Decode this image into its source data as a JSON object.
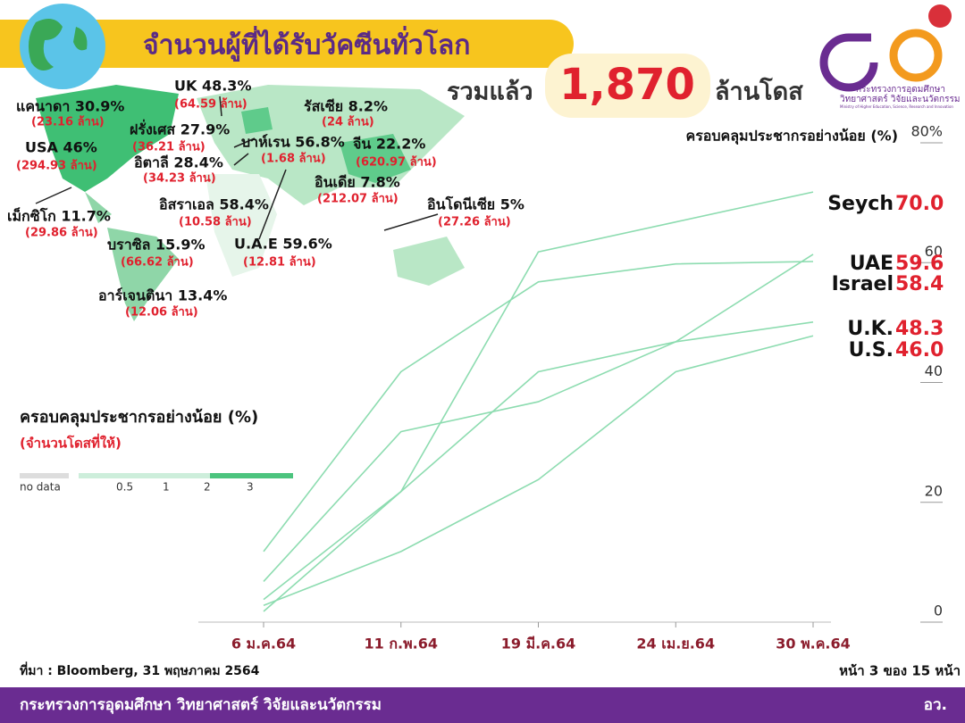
{
  "header": {
    "title": "จำนวนผู้ที่ได้รับวัคซีนทั่วโลก",
    "total_prefix": "รวมแล้ว",
    "total": "1,870",
    "total_suffix": "ล้านโดส",
    "logo_line1": "กระทรวงการอุดมศึกษา",
    "logo_line2": "วิทยาศาสตร์ วิจัยและนวัตกรรม",
    "logo_line3": "Ministry of Higher Education, Science, Research and Innovation"
  },
  "map": {
    "labels": [
      {
        "name": "แคนาดา 30.9%",
        "doses": "(23.16 ล้าน)"
      },
      {
        "name": "UK 48.3%",
        "doses": "(64.59 ล้าน)"
      },
      {
        "name": "ฝรั่งเศส 27.9%",
        "doses": "(36.21 ล้าน)"
      },
      {
        "name": "USA 46%",
        "doses": "(294.93 ล้าน)"
      },
      {
        "name": "อิตาลี 28.4%",
        "doses": "(34.23 ล้าน)"
      },
      {
        "name": "รัสเซีย 8.2%",
        "doses": "(24 ล้าน)"
      },
      {
        "name": "บาห์เรน 56.8%",
        "doses": "(1.68 ล้าน)"
      },
      {
        "name": "จีน 22.2%",
        "doses": "(620.97 ล้าน)"
      },
      {
        "name": "อินเดีย 7.8%",
        "doses": "(212.07 ล้าน)"
      },
      {
        "name": "อิสราเอล 58.4%",
        "doses": "(10.58 ล้าน)"
      },
      {
        "name": "อินโดนีเซีย 5%",
        "doses": "(27.26 ล้าน)"
      },
      {
        "name": "เม็กซิโก 11.7%",
        "doses": "(29.86 ล้าน)"
      },
      {
        "name": "บราซิล 15.9%",
        "doses": "(66.62 ล้าน)"
      },
      {
        "name": "U.A.E 59.6%",
        "doses": "(12.81 ล้าน)"
      },
      {
        "name": "อาร์เจนตินา 13.4%",
        "doses": "(12.06 ล้าน)"
      }
    ],
    "legend": {
      "title": "ครอบคลุมประชากรอย่างน้อย (%)",
      "subtitle": "(จำนวนโดสที่ให้)",
      "labels": [
        "no data",
        "0.5",
        "1",
        "2",
        "3"
      ]
    }
  },
  "chart_data": {
    "type": "line",
    "y_label": "ครอบคลุมประชากรอย่างน้อย (%)",
    "categories": [
      "6 ม.ค.64",
      "11 ก.พ.64",
      "19 มี.ค.64",
      "24 เม.ย.64",
      "30 พ.ค.64"
    ],
    "series": [
      {
        "name": "Seych",
        "color": "#8ddcb0",
        "values": [
          0,
          20,
          60,
          65,
          70.0
        ],
        "value_labels": [
          null,
          null,
          null,
          null,
          "70.0"
        ]
      },
      {
        "name": "UAE",
        "color": "#8ddcb0",
        "values": [
          5,
          30,
          35,
          45,
          59.6
        ],
        "value_labels": [
          null,
          null,
          null,
          null,
          "59.6"
        ]
      },
      {
        "name": "Israel",
        "color": "#8ddcb0",
        "values": [
          10,
          40,
          55,
          58,
          58.4
        ],
        "value_labels": [
          null,
          null,
          null,
          null,
          "58.4"
        ]
      },
      {
        "name": "U.K.",
        "color": "#8ddcb0",
        "values": [
          2,
          20,
          40,
          45,
          48.3
        ],
        "value_labels": [
          null,
          null,
          null,
          null,
          "48.3"
        ]
      },
      {
        "name": "U.S.",
        "color": "#8ddcb0",
        "values": [
          1,
          10,
          22,
          40,
          46.0
        ],
        "value_labels": [
          null,
          null,
          null,
          null,
          "46.0"
        ]
      }
    ],
    "ylim": [
      0,
      80
    ],
    "yticks": [
      0,
      20,
      40,
      60,
      {
        "value": 80,
        "label": "80%"
      }
    ]
  },
  "footer": {
    "source": "ที่มา : Bloomberg, 31 พฤษภาคม 2564",
    "page": "หน้า 3 ของ 15 หน้า",
    "ministry": "กระทรวงการอุดมศึกษา วิทยาศาสตร์ วิจัยและนวัตกรรม",
    "abbr": "อว."
  }
}
